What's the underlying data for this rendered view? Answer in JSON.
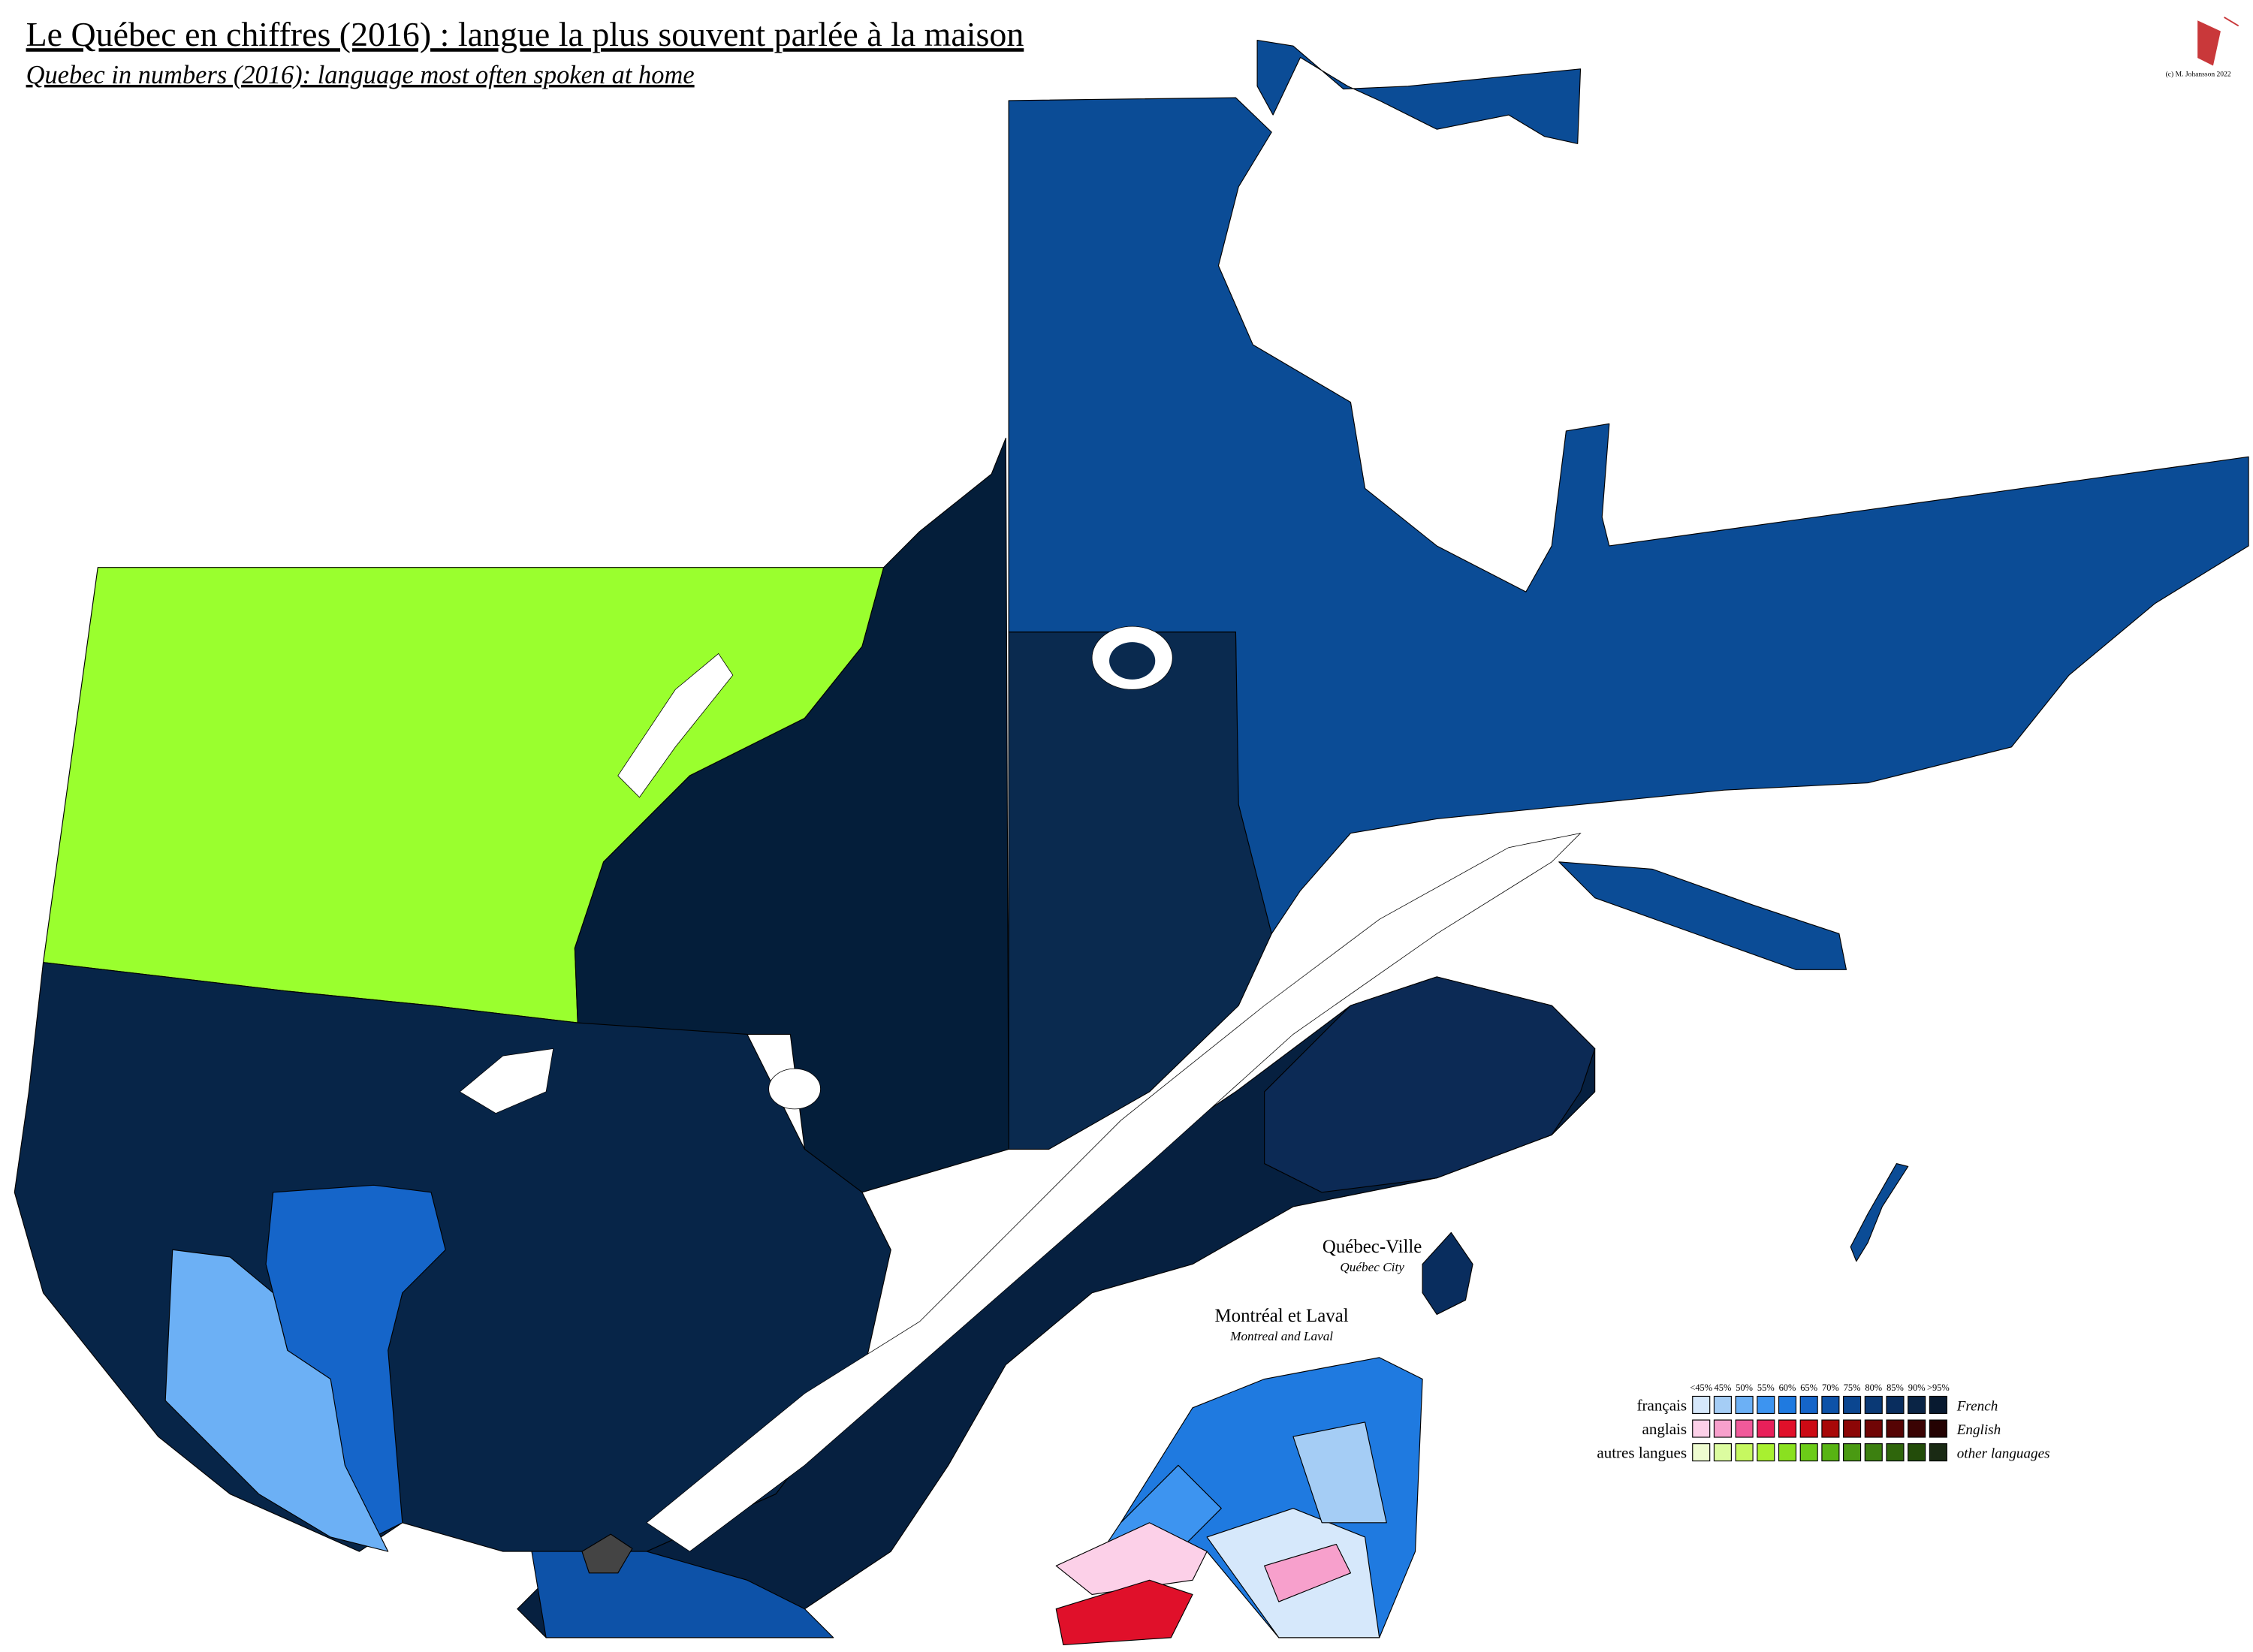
{
  "header": {
    "title": "Le Québec en chiffres (2016) : langue la plus souvent parlée à la maison",
    "subtitle": "Quebec in numbers (2016): language most often spoken at home",
    "credit": "(c) M. Johansson 2022"
  },
  "insets": [
    {
      "label": "Québec-Ville",
      "sublabel": "Québec City"
    },
    {
      "label": "Montréal et Laval",
      "sublabel": "Montreal and Laval"
    }
  ],
  "legend": {
    "scale": [
      "<45%",
      "45%",
      "50%",
      "55%",
      "60%",
      "65%",
      "70%",
      "75%",
      "80%",
      "85%",
      "90%",
      ">95%"
    ],
    "rows": [
      {
        "label": "français",
        "label_en": "French",
        "colors": [
          "#d6e8fb",
          "#a5cdf5",
          "#6cb0f5",
          "#3d94f0",
          "#1f7ae0",
          "#1565c9",
          "#0d52a8",
          "#0b4690",
          "#0a3975",
          "#092d5e",
          "#0a2445",
          "#081a30"
        ]
      },
      {
        "label": "anglais",
        "label_en": "English",
        "colors": [
          "#fcd0e8",
          "#f7a0cc",
          "#f05a9a",
          "#e8205a",
          "#e0102a",
          "#cc0a14",
          "#a80808",
          "#8c0606",
          "#700505",
          "#550404",
          "#3a0303",
          "#240202"
        ]
      },
      {
        "label": "autres langues",
        "label_en": "other languages",
        "colors": [
          "#eefcd0",
          "#dcfca0",
          "#c6f860",
          "#a8f030",
          "#8ae020",
          "#6ccc18",
          "#58b414",
          "#4a9a12",
          "#3c8010",
          "#2f660c",
          "#234c0a",
          "#1a2a14"
        ]
      }
    ]
  }
}
